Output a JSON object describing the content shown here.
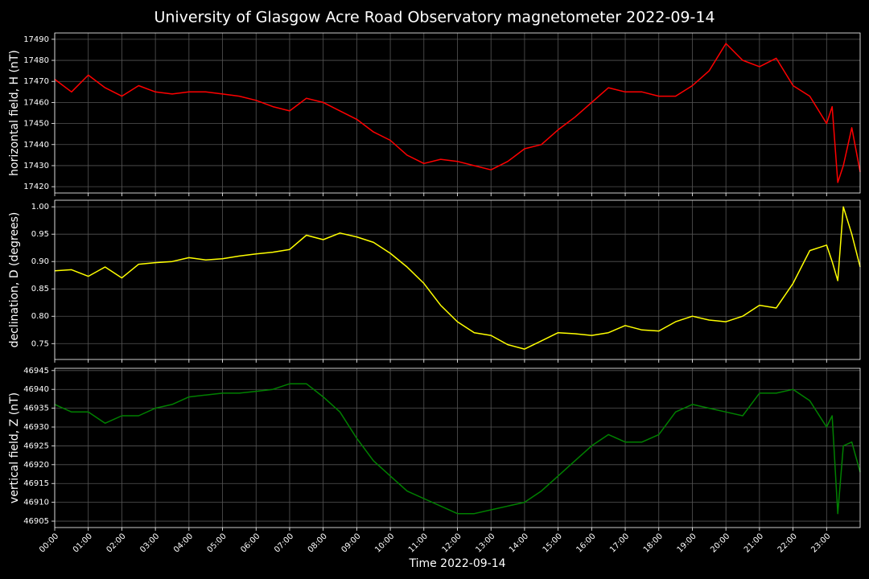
{
  "title": "University of Glasgow Acre Road Observatory magnetometer 2022-09-14",
  "chart_data": [
    {
      "type": "line",
      "ylabel": "horizontal field, H (nT)",
      "color": "#ff0000",
      "x": [
        "00:00",
        "00:30",
        "01:00",
        "01:30",
        "02:00",
        "02:30",
        "03:00",
        "03:30",
        "04:00",
        "04:30",
        "05:00",
        "05:30",
        "06:00",
        "06:30",
        "07:00",
        "07:30",
        "08:00",
        "08:30",
        "09:00",
        "09:30",
        "10:00",
        "10:30",
        "11:00",
        "11:30",
        "12:00",
        "12:30",
        "13:00",
        "13:30",
        "14:00",
        "14:30",
        "15:00",
        "15:30",
        "16:00",
        "16:30",
        "17:00",
        "17:30",
        "18:00",
        "18:30",
        "19:00",
        "19:30",
        "20:00",
        "20:30",
        "21:00",
        "21:30",
        "22:00",
        "22:30",
        "23:00",
        "23:10",
        "23:20",
        "23:30",
        "23:45",
        "24:00"
      ],
      "values": [
        17471,
        17465,
        17473,
        17467,
        17463,
        17468,
        17465,
        17464,
        17465,
        17465,
        17464,
        17463,
        17461,
        17458,
        17456,
        17462,
        17460,
        17456,
        17452,
        17446,
        17442,
        17435,
        17431,
        17433,
        17432,
        17430,
        17428,
        17432,
        17438,
        17440,
        17447,
        17453,
        17460,
        17467,
        17465,
        17465,
        17463,
        17463,
        17468,
        17475,
        17488,
        17480,
        17477,
        17481,
        17468,
        17463,
        17450,
        17458,
        17422,
        17430,
        17448,
        17427
      ],
      "xlim": [
        "00:00",
        "24:00"
      ],
      "xticks": [
        "00:00",
        "01:00",
        "02:00",
        "03:00",
        "04:00",
        "05:00",
        "06:00",
        "07:00",
        "08:00",
        "09:00",
        "10:00",
        "11:00",
        "12:00",
        "13:00",
        "14:00",
        "15:00",
        "16:00",
        "17:00",
        "18:00",
        "19:00",
        "20:00",
        "21:00",
        "22:00",
        "23:00"
      ],
      "ylim": [
        17417,
        17493
      ],
      "yticks": [
        17420,
        17430,
        17440,
        17450,
        17460,
        17470,
        17480,
        17490
      ],
      "grid": true
    },
    {
      "type": "line",
      "ylabel": "declination, D (degrees)",
      "color": "#ffff00",
      "x": [
        "00:00",
        "00:30",
        "01:00",
        "01:30",
        "02:00",
        "02:30",
        "03:00",
        "03:30",
        "04:00",
        "04:30",
        "05:00",
        "05:30",
        "06:00",
        "06:30",
        "07:00",
        "07:30",
        "08:00",
        "08:30",
        "09:00",
        "09:30",
        "10:00",
        "10:30",
        "11:00",
        "11:30",
        "12:00",
        "12:30",
        "13:00",
        "13:30",
        "14:00",
        "14:30",
        "15:00",
        "15:30",
        "16:00",
        "16:30",
        "17:00",
        "17:30",
        "18:00",
        "18:30",
        "19:00",
        "19:30",
        "20:00",
        "20:30",
        "21:00",
        "21:30",
        "22:00",
        "22:30",
        "23:00",
        "23:10",
        "23:20",
        "23:30",
        "23:45",
        "24:00"
      ],
      "values": [
        0.883,
        0.885,
        0.873,
        0.89,
        0.87,
        0.895,
        0.898,
        0.9,
        0.907,
        0.903,
        0.905,
        0.91,
        0.914,
        0.917,
        0.922,
        0.948,
        0.94,
        0.952,
        0.945,
        0.935,
        0.915,
        0.89,
        0.86,
        0.82,
        0.79,
        0.77,
        0.765,
        0.748,
        0.74,
        0.755,
        0.77,
        0.768,
        0.765,
        0.77,
        0.783,
        0.775,
        0.773,
        0.79,
        0.8,
        0.793,
        0.79,
        0.8,
        0.82,
        0.815,
        0.86,
        0.92,
        0.93,
        0.9,
        0.865,
        1.0,
        0.95,
        0.89
      ],
      "xlim": [
        "00:00",
        "24:00"
      ],
      "xticks": [
        "00:00",
        "01:00",
        "02:00",
        "03:00",
        "04:00",
        "05:00",
        "06:00",
        "07:00",
        "08:00",
        "09:00",
        "10:00",
        "11:00",
        "12:00",
        "13:00",
        "14:00",
        "15:00",
        "16:00",
        "17:00",
        "18:00",
        "19:00",
        "20:00",
        "21:00",
        "22:00",
        "23:00"
      ],
      "ylim": [
        0.721,
        1.012
      ],
      "yticks": [
        0.75,
        {
          "value": 0.8,
          "label": "0.80"
        },
        0.85,
        {
          "value": 0.9,
          "label": "0.90"
        },
        0.95,
        {
          "value": 1.0,
          "label": "1.00"
        }
      ],
      "grid": true
    },
    {
      "type": "line",
      "ylabel": "vertical field, Z (nT)",
      "xlabel": "Time 2022-09-14",
      "color": "#008000",
      "x": [
        "00:00",
        "00:30",
        "01:00",
        "01:30",
        "02:00",
        "02:30",
        "03:00",
        "03:30",
        "04:00",
        "04:30",
        "05:00",
        "05:30",
        "06:00",
        "06:30",
        "07:00",
        "07:30",
        "08:00",
        "08:30",
        "09:00",
        "09:30",
        "10:00",
        "10:30",
        "11:00",
        "11:30",
        "12:00",
        "12:30",
        "13:00",
        "13:30",
        "14:00",
        "14:30",
        "15:00",
        "15:30",
        "16:00",
        "16:30",
        "17:00",
        "17:30",
        "18:00",
        "18:30",
        "19:00",
        "19:30",
        "20:00",
        "20:30",
        "21:00",
        "21:30",
        "22:00",
        "22:30",
        "23:00",
        "23:10",
        "23:20",
        "23:30",
        "23:45",
        "24:00"
      ],
      "values": [
        46936,
        46934,
        46934,
        46931,
        46933,
        46933,
        46935,
        46936,
        46938,
        46938.5,
        46939,
        46939,
        46939.5,
        46940,
        46941.5,
        46941.5,
        46938,
        46934,
        46927,
        46921,
        46917,
        46913,
        46911,
        46909,
        46907,
        46907,
        46908,
        46909,
        46910,
        46913,
        46917,
        46921,
        46925,
        46928,
        46926,
        46926,
        46928,
        46934,
        46936,
        46935,
        46934,
        46933,
        46939,
        46939,
        46940,
        46937,
        46930,
        46933,
        46907,
        46925,
        46926,
        46918
      ],
      "xlim": [
        "00:00",
        "24:00"
      ],
      "xticks": [
        "00:00",
        "01:00",
        "02:00",
        "03:00",
        "04:00",
        "05:00",
        "06:00",
        "07:00",
        "08:00",
        "09:00",
        "10:00",
        "11:00",
        "12:00",
        "13:00",
        "14:00",
        "15:00",
        "16:00",
        "17:00",
        "18:00",
        "19:00",
        "20:00",
        "21:00",
        "22:00",
        "23:00"
      ],
      "ylim": [
        46903.3,
        46945.6
      ],
      "yticks": [
        46905,
        46910,
        46915,
        46920,
        46925,
        46930,
        46935,
        46940,
        46945
      ],
      "grid": true
    }
  ]
}
